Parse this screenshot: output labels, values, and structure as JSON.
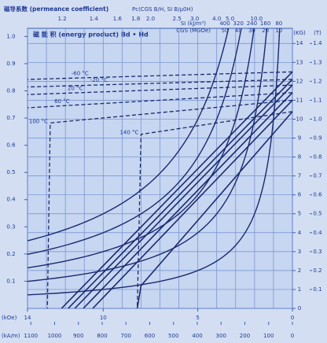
{
  "chart_data": {
    "type": "demagnetization",
    "title": "磁导系数 (permeance coefficient)",
    "permeance_note": "Pc(CGS B/H, SI B/μ0H)",
    "permeance_coefficients": [
      1.2,
      1.4,
      1.6,
      1.8,
      {
        "value": 2,
        "label": "2.0"
      },
      2.5,
      {
        "value": 3,
        "label": "3.0"
      },
      {
        "value": 4,
        "label": "4.0"
      },
      {
        "value": 5,
        "label": "5.0"
      },
      {
        "value": 10,
        "label": "10.0"
      }
    ],
    "energy_title": "磁 能 积 (energy product)   Bd • Hd",
    "energy_si_unit": "SI (kJ/m³)",
    "energy_cgs_unit": "CGS (MGOe)",
    "energy_products": {
      "si": [
        400,
        320,
        240,
        160,
        80
      ],
      "cgs": [
        50,
        40,
        30,
        20,
        10
      ]
    },
    "x_label": "(kOe)",
    "xlim": [
      14,
      0
    ],
    "xticks": [
      14,
      10,
      5,
      0
    ],
    "xgrid": [
      0,
      1,
      2,
      3,
      4,
      5,
      6,
      7,
      8,
      9,
      10,
      11,
      12,
      13,
      14
    ],
    "x2_label": "(kA/m)",
    "x2lim": [
      1114,
      0
    ],
    "x2ticks": [
      1100,
      1000,
      900,
      800,
      700,
      600,
      500,
      400,
      300,
      200,
      100,
      0
    ],
    "ylim": [
      0,
      1.03
    ],
    "yticks": [
      0.1,
      0.2,
      0.3,
      0.4,
      0.5,
      0.6,
      0.7,
      0.8,
      0.9,
      {
        "value": 1,
        "label": "1.0"
      }
    ],
    "y2_label": "(KG)",
    "y2lim": [
      0,
      14.8
    ],
    "y2ticks": [
      0,
      1,
      2,
      3,
      4,
      5,
      6,
      7,
      8,
      9,
      10,
      11,
      12,
      13,
      14
    ],
    "y3_label": "(T)",
    "y3lim": [
      0,
      1.48
    ],
    "y3ticks": [
      0.1,
      0.2,
      0.3,
      0.4,
      0.5,
      0.6,
      0.7,
      0.8,
      0.9,
      {
        "value": 1,
        "label": "1.0"
      },
      1.1,
      1.2,
      1.3,
      1.4
    ],
    "grid": true,
    "color": "#1b2a6e",
    "series": [
      {
        "name": "-60 °C",
        "color": "#1b2a6e",
        "x": [
          0,
          14
        ],
        "values": [
          12.5,
          12.1
        ],
        "b_x": [
          0,
          12.2
        ],
        "b_values": [
          12.5,
          0
        ]
      },
      {
        "name": "-20 °C",
        "color": "#1b2a6e",
        "x": [
          0,
          14
        ],
        "values": [
          12.1,
          11.7
        ],
        "b_x": [
          0,
          11.85
        ],
        "b_values": [
          12.1,
          0
        ]
      },
      {
        "name": "20 °C",
        "color": "#1b2a6e",
        "x": [
          0,
          14
        ],
        "values": [
          11.8,
          11.3
        ],
        "b_x": [
          0,
          11.5
        ],
        "b_values": [
          11.8,
          0
        ]
      },
      {
        "name": "60 °C",
        "color": "#1b2a6e",
        "x": [
          0,
          14
        ],
        "values": [
          11.4,
          10.6
        ],
        "b_x": [
          0,
          11.05
        ],
        "b_values": [
          11.4,
          0
        ]
      },
      {
        "name": "100 °C",
        "color": "#1b2a6e",
        "x": [
          0,
          12.8,
          12.95
        ],
        "values": [
          11.0,
          9.8,
          0
        ],
        "b_x": [
          0,
          10.55
        ],
        "b_values": [
          11.0,
          0
        ]
      },
      {
        "name": "140 °C",
        "color": "#1b2a6e",
        "x": [
          0,
          8.0,
          8.2
        ],
        "values": [
          10.4,
          9.2,
          0
        ],
        "b_x": [
          0,
          8.0,
          8.2
        ],
        "b_values": [
          10.4,
          1.2,
          0
        ]
      }
    ]
  }
}
